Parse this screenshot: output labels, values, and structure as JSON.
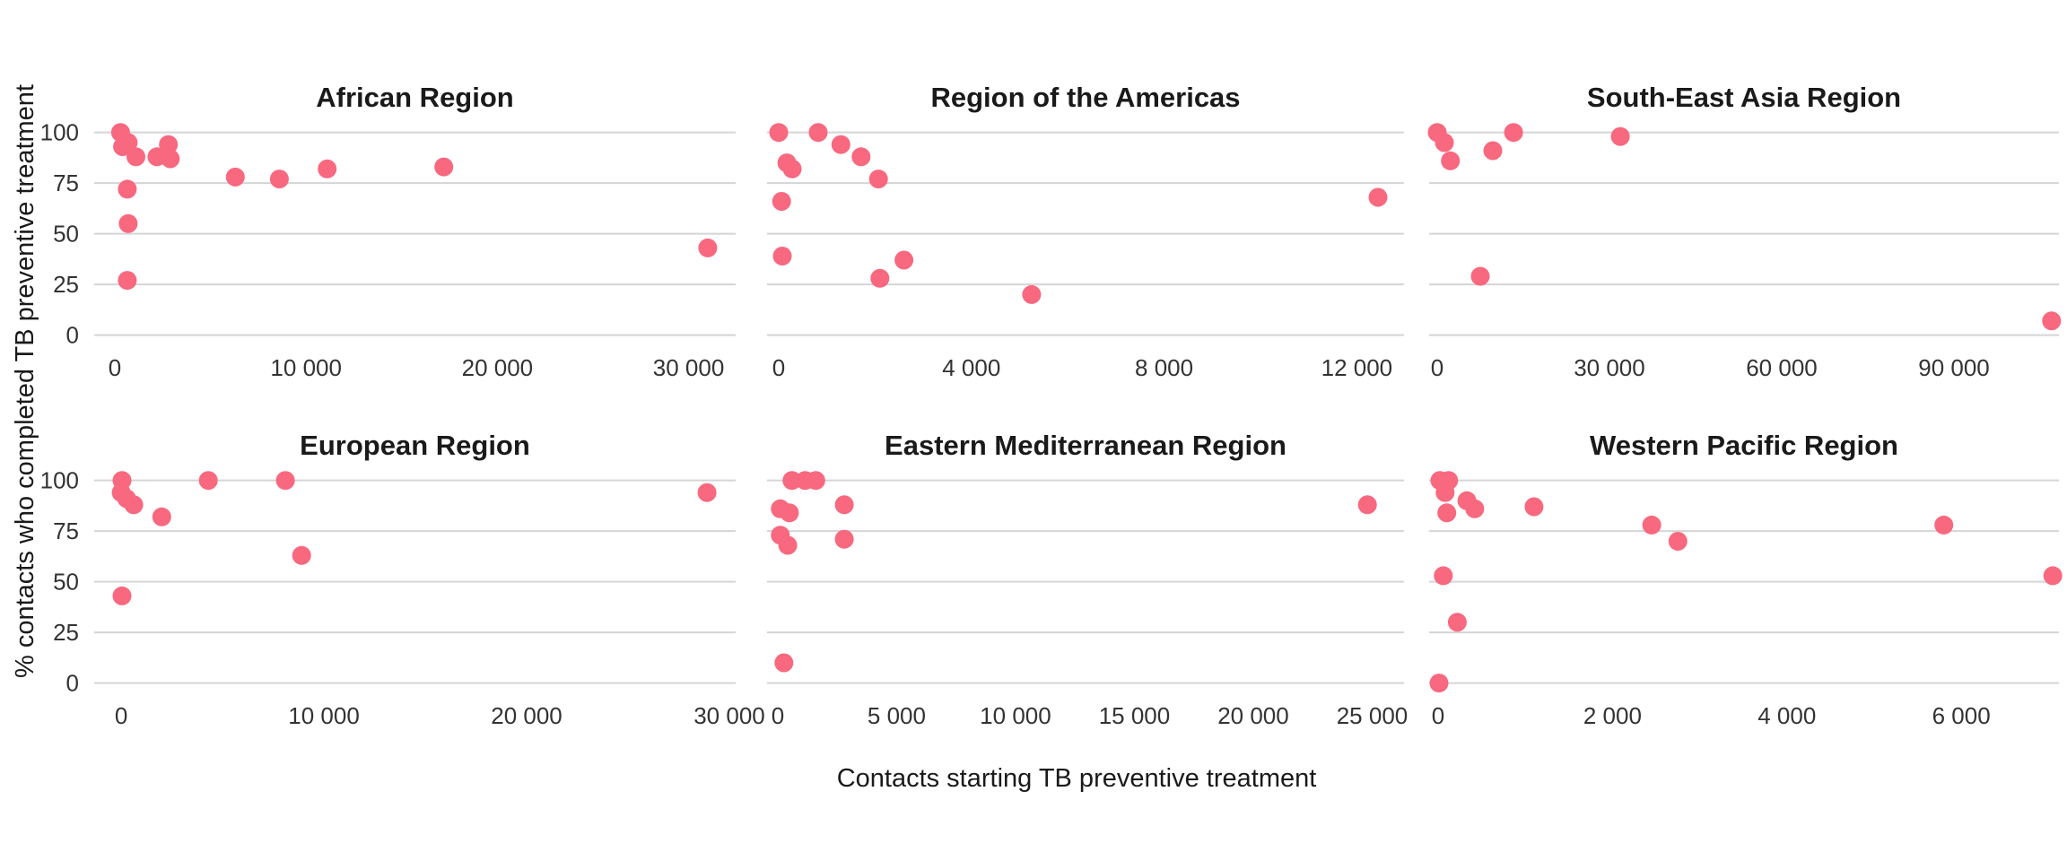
{
  "figure": {
    "y_axis_title": "% contacts who completed TB preventive treatment",
    "x_axis_title": "Contacts starting TB preventive treatment",
    "dot_color": "#F8687F",
    "grid_color": "#D5D5D5",
    "facet_title_color": "#1A1A1A",
    "tick_label_color": "#333333",
    "background_color": "#FFFFFF"
  },
  "chart_data": [
    {
      "type": "scatter",
      "title": "African Region",
      "row": 0,
      "col": 0,
      "xlim": [
        -1080,
        32460
      ],
      "ylim": [
        -5.5,
        106.5
      ],
      "x_ticks": [
        0,
        10000,
        20000,
        30000
      ],
      "x_tick_labels": [
        "0",
        "10 000",
        "20 000",
        "30 000"
      ],
      "y_ticks": [
        0,
        25,
        50,
        75,
        100
      ],
      "y_tick_labels": [
        "0",
        "25",
        "50",
        "75",
        "100"
      ],
      "points": [
        [
          300,
          100
        ],
        [
          700,
          95
        ],
        [
          400,
          93
        ],
        [
          1100,
          88
        ],
        [
          2200,
          88
        ],
        [
          2800,
          94
        ],
        [
          2900,
          87
        ],
        [
          650,
          72
        ],
        [
          700,
          55
        ],
        [
          650,
          27
        ],
        [
          6300,
          78
        ],
        [
          8600,
          77
        ],
        [
          11100,
          82
        ],
        [
          17200,
          83
        ],
        [
          31000,
          43
        ]
      ]
    },
    {
      "type": "scatter",
      "title": "Region of the Americas",
      "row": 0,
      "col": 1,
      "xlim": [
        -242,
        12980
      ],
      "ylim": [
        -5.5,
        106.5
      ],
      "x_ticks": [
        0,
        4000,
        8000,
        12000
      ],
      "x_tick_labels": [
        "0",
        "4 000",
        "8 000",
        "12 000"
      ],
      "y_ticks": [
        0,
        25,
        50,
        75,
        100
      ],
      "y_tick_labels": [
        "0",
        "25",
        "50",
        "75",
        "100"
      ],
      "points": [
        [
          0,
          100
        ],
        [
          820,
          100
        ],
        [
          1290,
          94
        ],
        [
          1710,
          88
        ],
        [
          2070,
          77
        ],
        [
          170,
          85
        ],
        [
          280,
          82
        ],
        [
          60,
          66
        ],
        [
          75,
          39
        ],
        [
          2100,
          28
        ],
        [
          2600,
          37
        ],
        [
          5250,
          20
        ],
        [
          12440,
          68
        ]
      ]
    },
    {
      "type": "scatter",
      "title": "South-East Asia Region",
      "row": 0,
      "col": 2,
      "xlim": [
        -1400,
        108280
      ],
      "ylim": [
        -5.5,
        106.5
      ],
      "x_ticks": [
        0,
        30000,
        60000,
        90000
      ],
      "x_tick_labels": [
        "0",
        "30 000",
        "60 000",
        "90 000"
      ],
      "y_ticks": [
        0,
        25,
        50,
        75,
        100
      ],
      "y_tick_labels": [
        "0",
        "25",
        "50",
        "75",
        "100"
      ],
      "points": [
        [
          0,
          100
        ],
        [
          1250,
          95
        ],
        [
          2300,
          86
        ],
        [
          9700,
          91
        ],
        [
          13300,
          100
        ],
        [
          31900,
          98
        ],
        [
          7500,
          29
        ],
        [
          107000,
          7
        ]
      ]
    },
    {
      "type": "scatter",
      "title": "European Region",
      "row": 1,
      "col": 0,
      "xlim": [
        -1330,
        30310
      ],
      "ylim": [
        -5.5,
        106.5
      ],
      "x_ticks": [
        0,
        10000,
        20000,
        30000
      ],
      "x_tick_labels": [
        "0",
        "10 000",
        "20 000",
        "30 000"
      ],
      "y_ticks": [
        0,
        25,
        50,
        75,
        100
      ],
      "y_tick_labels": [
        "0",
        "25",
        "50",
        "75",
        "100"
      ],
      "points": [
        [
          40,
          100
        ],
        [
          0,
          94
        ],
        [
          270,
          91
        ],
        [
          620,
          88
        ],
        [
          2000,
          82
        ],
        [
          4300,
          100
        ],
        [
          8100,
          100
        ],
        [
          8900,
          63
        ],
        [
          40,
          43
        ],
        [
          28900,
          94
        ]
      ]
    },
    {
      "type": "scatter",
      "title": "Eastern Mediterranean Region",
      "row": 1,
      "col": 1,
      "xlim": [
        -450,
        26340
      ],
      "ylim": [
        -5.5,
        106.5
      ],
      "x_ticks": [
        0,
        5000,
        10000,
        15000,
        20000,
        25000
      ],
      "x_tick_labels": [
        "0",
        "5 000",
        "10 000",
        "15 000",
        "20 000",
        "25 000"
      ],
      "y_ticks": [
        0,
        25,
        50,
        75,
        100
      ],
      "y_tick_labels": [
        "0",
        "25",
        "50",
        "75",
        "100"
      ],
      "points": [
        [
          600,
          100
        ],
        [
          1150,
          100
        ],
        [
          1600,
          100
        ],
        [
          110,
          86
        ],
        [
          490,
          84
        ],
        [
          2800,
          88
        ],
        [
          110,
          73
        ],
        [
          420,
          68
        ],
        [
          2800,
          71
        ],
        [
          260,
          10
        ],
        [
          24800,
          88
        ]
      ]
    },
    {
      "type": "scatter",
      "title": "Western Pacific Region",
      "row": 1,
      "col": 2,
      "xlim": [
        -103,
        7120
      ],
      "ylim": [
        -5.5,
        106.5
      ],
      "x_ticks": [
        0,
        2000,
        4000,
        6000
      ],
      "x_tick_labels": [
        "0",
        "2 000",
        "4 000",
        "6 000"
      ],
      "y_ticks": [
        0,
        25,
        50,
        75,
        100
      ],
      "y_tick_labels": [
        "0",
        "25",
        "50",
        "75",
        "100"
      ],
      "points": [
        [
          20,
          100
        ],
        [
          120,
          100
        ],
        [
          80,
          94
        ],
        [
          100,
          84
        ],
        [
          330,
          90
        ],
        [
          420,
          86
        ],
        [
          1100,
          87
        ],
        [
          2450,
          78
        ],
        [
          2750,
          70
        ],
        [
          60,
          53
        ],
        [
          220,
          30
        ],
        [
          10,
          0
        ],
        [
          5800,
          78
        ],
        [
          7050,
          53
        ]
      ]
    }
  ]
}
